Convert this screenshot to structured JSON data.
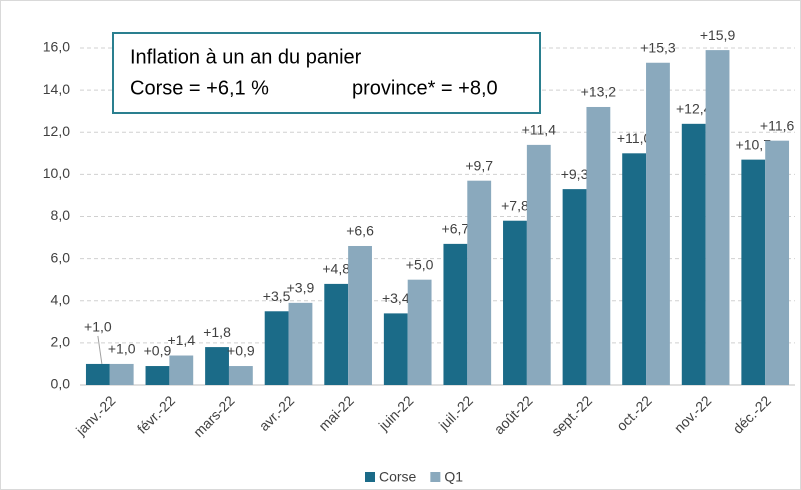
{
  "chart_data": {
    "type": "bar",
    "annotations": [
      "Inflation à un an du panier",
      "Corse = +6,1 %",
      "province* = +8,0"
    ],
    "categories": [
      "janv.-22",
      "févr.-22",
      "mars-22",
      "avr.-22",
      "mai-22",
      "juin-22",
      "juil.-22",
      "août-22",
      "sept.-22",
      "oct.-22",
      "nov.-22",
      "déc.-22"
    ],
    "series": [
      {
        "name": "Corse",
        "color": "#1b6b88",
        "values": [
          1.0,
          0.9,
          1.8,
          3.5,
          4.8,
          3.4,
          6.7,
          7.8,
          9.3,
          11.0,
          12.4,
          10.7
        ],
        "value_labels": [
          "+1,0",
          "+0,9",
          "+1,8",
          "+3,5",
          "+4,8",
          "+3,4",
          "+6,7",
          "+7,8",
          "+9,3",
          "+11,0",
          "+12,4",
          "+10,7"
        ]
      },
      {
        "name": "Q1",
        "color": "#8aa9bd",
        "values": [
          1.0,
          1.4,
          0.9,
          3.9,
          6.6,
          5.0,
          9.7,
          11.4,
          13.2,
          15.3,
          15.9,
          11.6
        ],
        "value_labels": [
          "+1,0",
          "+1,4",
          "+0,9",
          "+3,9",
          "+6,6",
          "+5,0",
          "+9,7",
          "+11,4",
          "+13,2",
          "+15,3",
          "+15,9",
          "+11,6"
        ]
      }
    ],
    "ylim": [
      0,
      16
    ],
    "yticks": [
      {
        "value": 0,
        "label": "0,0"
      },
      {
        "value": 2,
        "label": "2,0"
      },
      {
        "value": 4,
        "label": "4,0"
      },
      {
        "value": 6,
        "label": "6,0"
      },
      {
        "value": 8,
        "label": "8,0"
      },
      {
        "value": 10,
        "label": "10,0"
      },
      {
        "value": 12,
        "label": "12,0"
      },
      {
        "value": 14,
        "label": "14,0"
      },
      {
        "value": 16,
        "label": "16,0"
      }
    ],
    "grid": true,
    "legend": "bottom"
  }
}
